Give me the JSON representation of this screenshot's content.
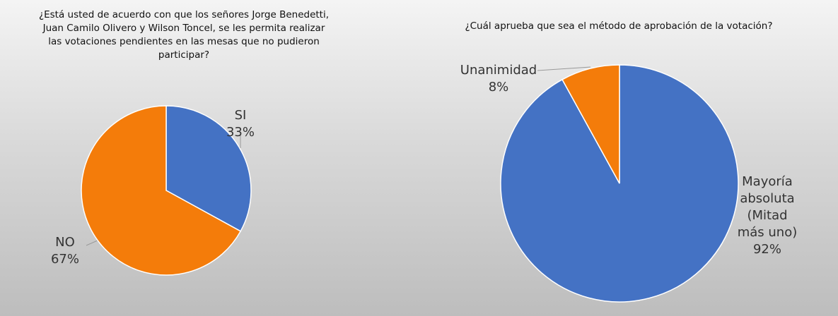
{
  "chart_data": [
    {
      "type": "pie",
      "title": "¿Está usted de acuerdo con que los señores Jorge Benedetti, Juan Camilo Olivero y Wilson Toncel, se les permita realizar las votaciones pendientes en las mesas que no pudieron participar?",
      "categories": [
        "SI",
        "NO"
      ],
      "values": [
        33,
        67
      ],
      "value_labels": [
        "33%",
        "67%"
      ],
      "colors": [
        "#4472c4",
        "#f47c0a"
      ]
    },
    {
      "type": "pie",
      "title": "¿Cuál aprueba que sea el método de aprobación de la votación?",
      "categories": [
        "Mayoría absoluta (Mitad más uno)",
        "Unanimidad"
      ],
      "values": [
        92,
        8
      ],
      "value_labels": [
        "92%",
        "8%"
      ],
      "colors": [
        "#4472c4",
        "#f47c0a"
      ]
    }
  ]
}
